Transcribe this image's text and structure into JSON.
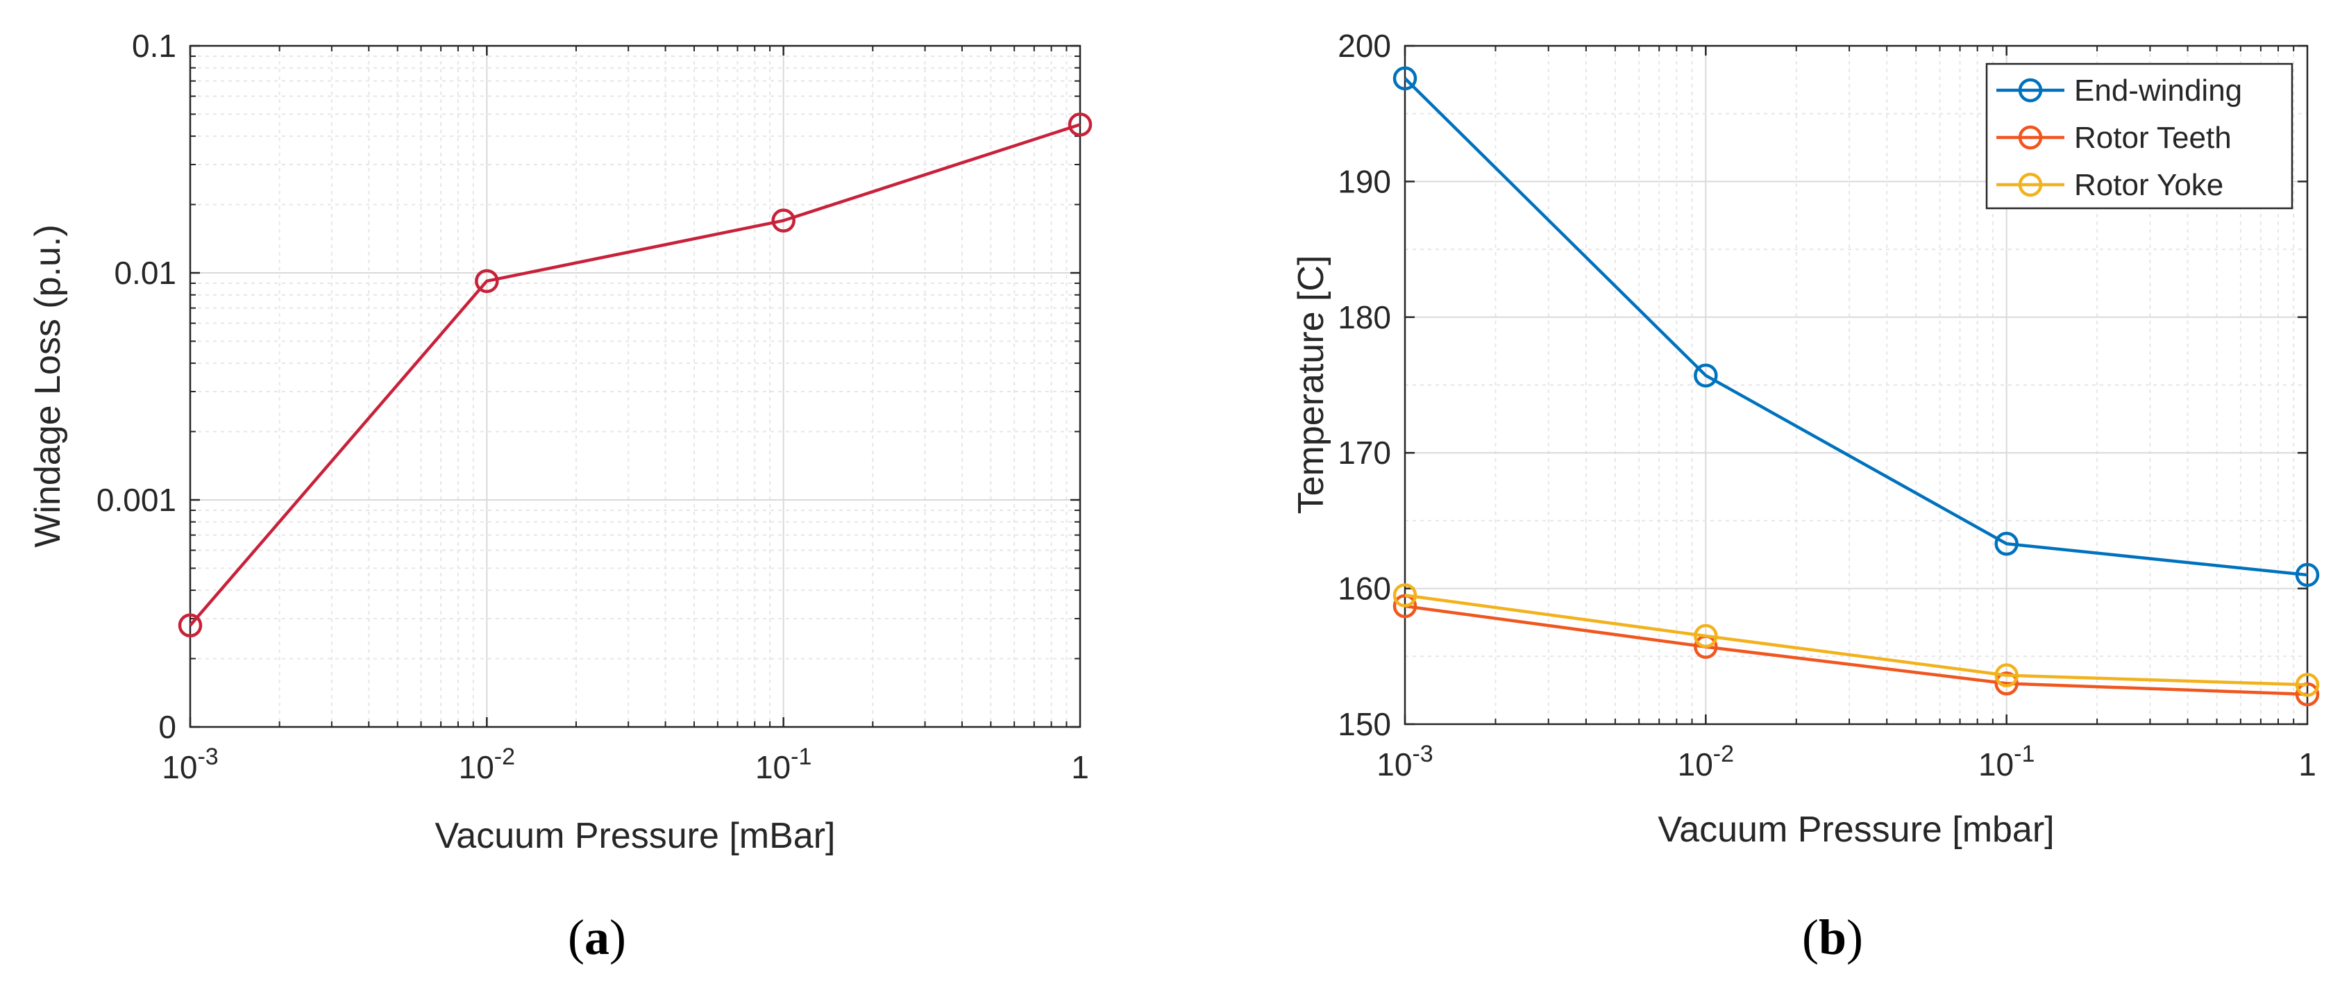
{
  "chart_data": [
    {
      "type": "line",
      "panel_label": "a",
      "xscale": "log",
      "xlim": [
        0.001,
        1
      ],
      "xticks": [
        0.001,
        0.01,
        0.1,
        1
      ],
      "xtick_labels": [
        {
          "base": "10",
          "exp": "-3"
        },
        {
          "base": "10",
          "exp": "-2"
        },
        {
          "base": "10",
          "exp": "-1"
        },
        {
          "base": "1",
          "exp": ""
        }
      ],
      "yscale": "log",
      "ylim": [
        0.0001,
        0.1
      ],
      "yticks": [
        0.0001,
        0.001,
        0.01,
        0.1
      ],
      "ytick_labels": [
        "0",
        "0.001",
        "0.01",
        "0.1"
      ],
      "xlabel": "Vacuum Pressure [mBar]",
      "ylabel": "Windage Loss (p.u.)",
      "grid": true,
      "series": [
        {
          "name": "Windage Loss",
          "color": "#c8213a",
          "x": [
            0.001,
            0.01,
            0.1,
            1
          ],
          "values": [
            0.00028,
            0.0092,
            0.017,
            0.045
          ]
        }
      ]
    },
    {
      "type": "line",
      "panel_label": "b",
      "xscale": "log",
      "xlim": [
        0.001,
        1
      ],
      "xticks": [
        0.001,
        0.01,
        0.1,
        1
      ],
      "xtick_labels": [
        {
          "base": "10",
          "exp": "-3"
        },
        {
          "base": "10",
          "exp": "-2"
        },
        {
          "base": "10",
          "exp": "-1"
        },
        {
          "base": "1",
          "exp": ""
        }
      ],
      "yscale": "linear",
      "ylim": [
        150,
        200
      ],
      "yticks": [
        150,
        160,
        170,
        180,
        190,
        200
      ],
      "ytick_labels": [
        "150",
        "160",
        "170",
        "180",
        "190",
        "200"
      ],
      "xlabel": "Vacuum Pressure [mbar]",
      "ylabel": "Temperature [C]",
      "grid": true,
      "legend": "top-right",
      "series": [
        {
          "name": "End-winding",
          "color": "#0072bd",
          "x": [
            0.001,
            0.01,
            0.1,
            1
          ],
          "values": [
            197.6,
            175.7,
            163.3,
            161.0
          ]
        },
        {
          "name": "Rotor Teeth",
          "color": "#f0561e",
          "x": [
            0.001,
            0.01,
            0.1,
            1
          ],
          "values": [
            158.7,
            155.7,
            153.0,
            152.2
          ]
        },
        {
          "name": "Rotor Yoke",
          "color": "#f2b21c",
          "x": [
            0.001,
            0.01,
            0.1,
            1
          ],
          "values": [
            159.5,
            156.5,
            153.6,
            152.9
          ]
        }
      ]
    }
  ]
}
